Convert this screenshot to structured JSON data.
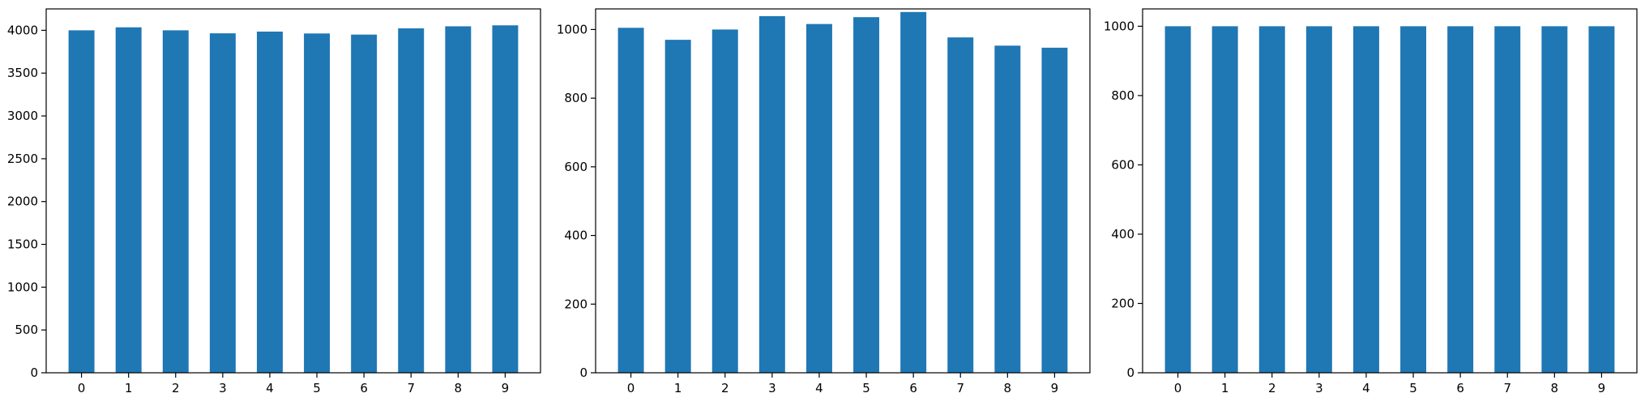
{
  "chart_data": [
    {
      "type": "bar",
      "title": "",
      "xlabel": "",
      "ylabel": "",
      "categories": [
        "0",
        "1",
        "2",
        "3",
        "4",
        "5",
        "6",
        "7",
        "8",
        "9"
      ],
      "values": [
        4000,
        4035,
        4000,
        3965,
        3985,
        3963,
        3950,
        4023,
        4047,
        4058
      ],
      "ylim": [
        0,
        4250
      ],
      "yticks": [
        0,
        500,
        1000,
        1500,
        2000,
        2500,
        3000,
        3500,
        4000
      ],
      "grid": false,
      "bar_color": "#1f77b4"
    },
    {
      "type": "bar",
      "title": "",
      "xlabel": "",
      "ylabel": "",
      "categories": [
        "0",
        "1",
        "2",
        "3",
        "4",
        "5",
        "6",
        "7",
        "8",
        "9"
      ],
      "values": [
        1005,
        970,
        1000,
        1039,
        1016,
        1036,
        1051,
        977,
        953,
        947
      ],
      "ylim": [
        0,
        1060
      ],
      "yticks": [
        0,
        200,
        400,
        600,
        800,
        1000
      ],
      "grid": false,
      "bar_color": "#1f77b4"
    },
    {
      "type": "bar",
      "title": "",
      "xlabel": "",
      "ylabel": "",
      "categories": [
        "0",
        "1",
        "2",
        "3",
        "4",
        "5",
        "6",
        "7",
        "8",
        "9"
      ],
      "values": [
        1000,
        1000,
        1000,
        1000,
        1000,
        1000,
        1000,
        1000,
        1000,
        1000
      ],
      "ylim": [
        0,
        1050
      ],
      "yticks": [
        0,
        200,
        400,
        600,
        800,
        1000
      ],
      "grid": false,
      "bar_color": "#1f77b4"
    }
  ]
}
